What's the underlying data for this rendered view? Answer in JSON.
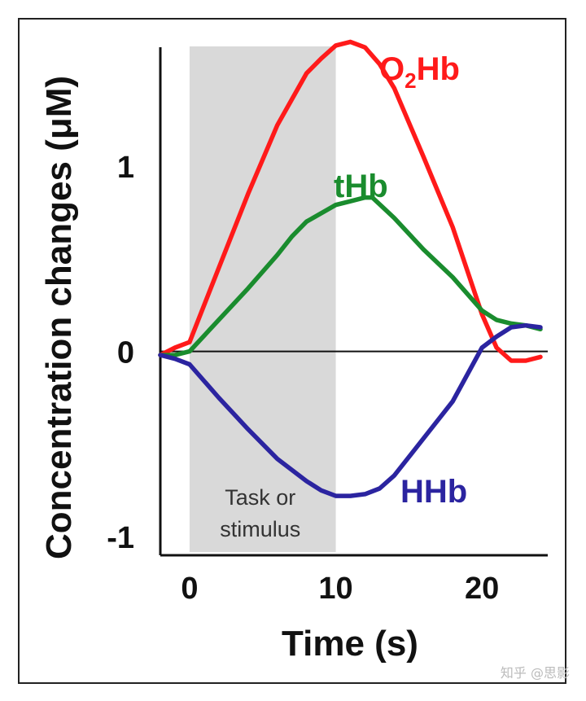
{
  "chart_data": {
    "type": "line",
    "xlabel": "Time (s)",
    "ylabel": "Concentration changes (μM)",
    "xlim": [
      -2,
      24.5
    ],
    "ylim": [
      -1.1,
      1.72
    ],
    "x_ticks": [
      0,
      10,
      20
    ],
    "y_ticks": [
      -1,
      0,
      1
    ],
    "grid": false,
    "zero_line": true,
    "shaded_region": {
      "x_start": 0,
      "x_end": 10,
      "label_line1": "Task or",
      "label_line2": "stimulus",
      "color": "#d9d9d9"
    },
    "series": [
      {
        "name_main": "O",
        "name_sub": "2",
        "name_rest": "Hb",
        "color": "#ff1a1a",
        "x": [
          -2,
          -1,
          0,
          2,
          4,
          6,
          8,
          9,
          10,
          11,
          12,
          13,
          14,
          16,
          18,
          20,
          21,
          22,
          23,
          24
        ],
        "y": [
          -0.02,
          0.02,
          0.05,
          0.45,
          0.85,
          1.22,
          1.5,
          1.58,
          1.65,
          1.67,
          1.64,
          1.55,
          1.42,
          1.05,
          0.67,
          0.2,
          0.02,
          -0.05,
          -0.05,
          -0.03
        ]
      },
      {
        "name": "tHb",
        "color": "#1a8c2e",
        "x": [
          -2,
          -1,
          0,
          2,
          4,
          6,
          7,
          8,
          10,
          11,
          12,
          12.5,
          14,
          16,
          18,
          20,
          21,
          22,
          23,
          24
        ],
        "y": [
          -0.02,
          -0.02,
          0.0,
          0.17,
          0.34,
          0.52,
          0.62,
          0.7,
          0.79,
          0.81,
          0.83,
          0.83,
          0.72,
          0.55,
          0.4,
          0.22,
          0.17,
          0.15,
          0.14,
          0.12
        ]
      },
      {
        "name": "HHb",
        "color": "#2b24a0",
        "x": [
          -2,
          -1,
          0,
          2,
          4,
          6,
          8,
          9,
          10,
          11,
          12,
          13,
          14,
          16,
          18,
          20,
          21,
          22,
          23,
          24
        ],
        "y": [
          -0.02,
          -0.04,
          -0.07,
          -0.25,
          -0.42,
          -0.58,
          -0.7,
          -0.75,
          -0.78,
          -0.78,
          -0.77,
          -0.74,
          -0.67,
          -0.47,
          -0.27,
          0.02,
          0.08,
          0.13,
          0.14,
          0.13
        ]
      }
    ]
  },
  "watermark": "知乎 @思影"
}
